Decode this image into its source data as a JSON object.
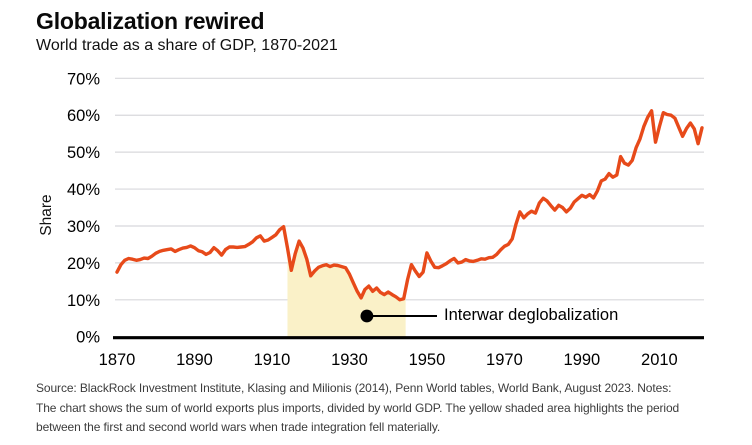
{
  "header": {
    "title": "Globalization rewired",
    "subtitle": "World trade as a share of GDP, 1870-2021"
  },
  "source": {
    "lines": [
      "Source: BlackRock Investment Institute, Klasing and Milionis (2014), Penn World tables, World Bank, August 2023. Notes:",
      "The chart shows the sum of world exports plus imports, divided by world GDP. The yellow shaded area highlights the period",
      "between the first and second world wars when trade integration fell materially."
    ]
  },
  "chart_data": {
    "type": "line",
    "title": "Globalization rewired",
    "subtitle": "World trade as a share of GDP, 1870-2021",
    "xlabel": "",
    "ylabel": "Share",
    "x_range": [
      1870,
      2021
    ],
    "ylim": [
      0,
      70
    ],
    "grid": true,
    "grid_color": "#d8d8dc",
    "line_color": "#e74a1a",
    "axis_color": "#000000",
    "yticks": [
      {
        "value": 0,
        "label": "0%"
      },
      {
        "value": 10,
        "label": "10%"
      },
      {
        "value": 20,
        "label": "20%"
      },
      {
        "value": 30,
        "label": "30%"
      },
      {
        "value": 40,
        "label": "40%"
      },
      {
        "value": 50,
        "label": "50%"
      },
      {
        "value": 60,
        "label": "60%"
      },
      {
        "value": 70,
        "label": "70%"
      }
    ],
    "xticks": [
      {
        "value": 1870,
        "label": "1870"
      },
      {
        "value": 1890,
        "label": "1890"
      },
      {
        "value": 1910,
        "label": "1910"
      },
      {
        "value": 1930,
        "label": "1930"
      },
      {
        "value": 1950,
        "label": "1950"
      },
      {
        "value": 1970,
        "label": "1970"
      },
      {
        "value": 1990,
        "label": "1990"
      },
      {
        "value": 2010,
        "label": "2010"
      }
    ],
    "shaded_region": {
      "from": 1914,
      "to": 1944.5,
      "color": "#faf1c8"
    },
    "annotation": {
      "label": "Interwar deglobalization",
      "year": 1934.5,
      "value": 5.6
    },
    "series": [
      {
        "name": "World trade as a share of GDP (%)",
        "start_year": 1870,
        "values": [
          17.5,
          19.5,
          20.7,
          21.2,
          21.0,
          20.7,
          20.9,
          21.3,
          21.2,
          21.8,
          22.6,
          23.1,
          23.4,
          23.6,
          23.8,
          23.1,
          23.6,
          24.0,
          24.2,
          24.6,
          24.1,
          23.3,
          23.0,
          22.3,
          22.8,
          24.1,
          23.3,
          22.1,
          23.6,
          24.3,
          24.3,
          24.2,
          24.3,
          24.4,
          25.0,
          25.7,
          26.8,
          27.3,
          25.9,
          26.2,
          26.9,
          27.6,
          29.0,
          29.8,
          24.0,
          18.0,
          22.5,
          25.9,
          24.0,
          21.0,
          16.5,
          17.8,
          18.8,
          19.2,
          19.5,
          19.0,
          19.4,
          19.3,
          19.0,
          18.7,
          16.9,
          14.6,
          12.3,
          10.5,
          12.8,
          13.7,
          12.3,
          13.2,
          12.0,
          11.4,
          12.1,
          11.4,
          10.8,
          10.0,
          10.3,
          15.5,
          19.5,
          17.8,
          16.3,
          17.5,
          22.7,
          20.5,
          18.8,
          18.7,
          19.2,
          19.8,
          20.6,
          21.2,
          20.0,
          20.2,
          20.9,
          20.5,
          20.4,
          20.7,
          21.1,
          21.0,
          21.4,
          21.5,
          22.3,
          23.5,
          24.5,
          25.0,
          26.5,
          30.5,
          33.8,
          32.2,
          33.3,
          34.0,
          33.5,
          36.2,
          37.5,
          36.8,
          35.5,
          34.3,
          35.6,
          35.0,
          33.8,
          34.8,
          36.5,
          37.4,
          38.3,
          37.8,
          38.5,
          37.6,
          39.5,
          42.2,
          42.7,
          44.2,
          43.2,
          43.8,
          48.8,
          47.0,
          46.5,
          47.8,
          51.2,
          53.6,
          57.0,
          59.5,
          61.2,
          52.7,
          56.9,
          60.7,
          60.2,
          60.0,
          59.2,
          56.7,
          54.3,
          56.4,
          57.9,
          56.3,
          52.3,
          56.6
        ]
      }
    ]
  }
}
